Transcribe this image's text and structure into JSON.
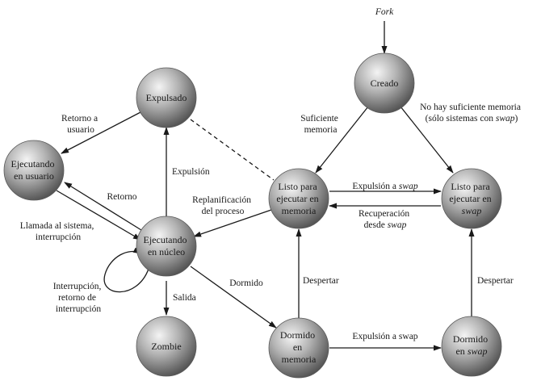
{
  "diagram": {
    "fork_label": "Fork",
    "nodes": {
      "creado": [
        "Creado"
      ],
      "expulsado": [
        "Expulsado"
      ],
      "ejecutando_usuario": [
        "Ejecutando",
        "en usuario"
      ],
      "listo_memoria": [
        "Listo para",
        "ejecutar en",
        "memoria"
      ],
      "listo_swap": [
        "Listo para",
        "ejecutar en",
        "swap"
      ],
      "ejecutando_nucleo": [
        "Ejecutando",
        "en núcleo"
      ],
      "zombie": [
        "Zombie"
      ],
      "dormido_memoria": [
        "Dormido",
        "en",
        "memoria"
      ],
      "dormido_swap": [
        "Dormido",
        "en swap"
      ]
    },
    "edge_labels": {
      "retorno_a_usuario": [
        "Retorno a",
        "usuario"
      ],
      "suficiente_memoria": [
        "Suficiente",
        "memoria"
      ],
      "no_hay_memoria": [
        "No hay suficiente memoria",
        "(sólo sistemas con swap)"
      ],
      "expulsion": [
        "Expulsión"
      ],
      "retorno": [
        "Retorno"
      ],
      "replanificacion": [
        "Replanificación",
        "del proceso"
      ],
      "expulsion_a_swap_top": [
        "Expulsión a swap"
      ],
      "recuperacion": [
        "Recuperación",
        "desde swap"
      ],
      "llamada_sistema": [
        "Llamada al sistema,",
        "interrupción"
      ],
      "interrupcion_retorno": [
        "Interrupción,",
        "retorno de",
        "interrupción"
      ],
      "salida": [
        "Salida"
      ],
      "dormido": [
        "Dormido"
      ],
      "despertar_memoria": [
        "Despertar"
      ],
      "despertar_swap": [
        "Despertar"
      ],
      "expulsion_a_swap_bottom": [
        "Expulsión a swap"
      ]
    }
  }
}
